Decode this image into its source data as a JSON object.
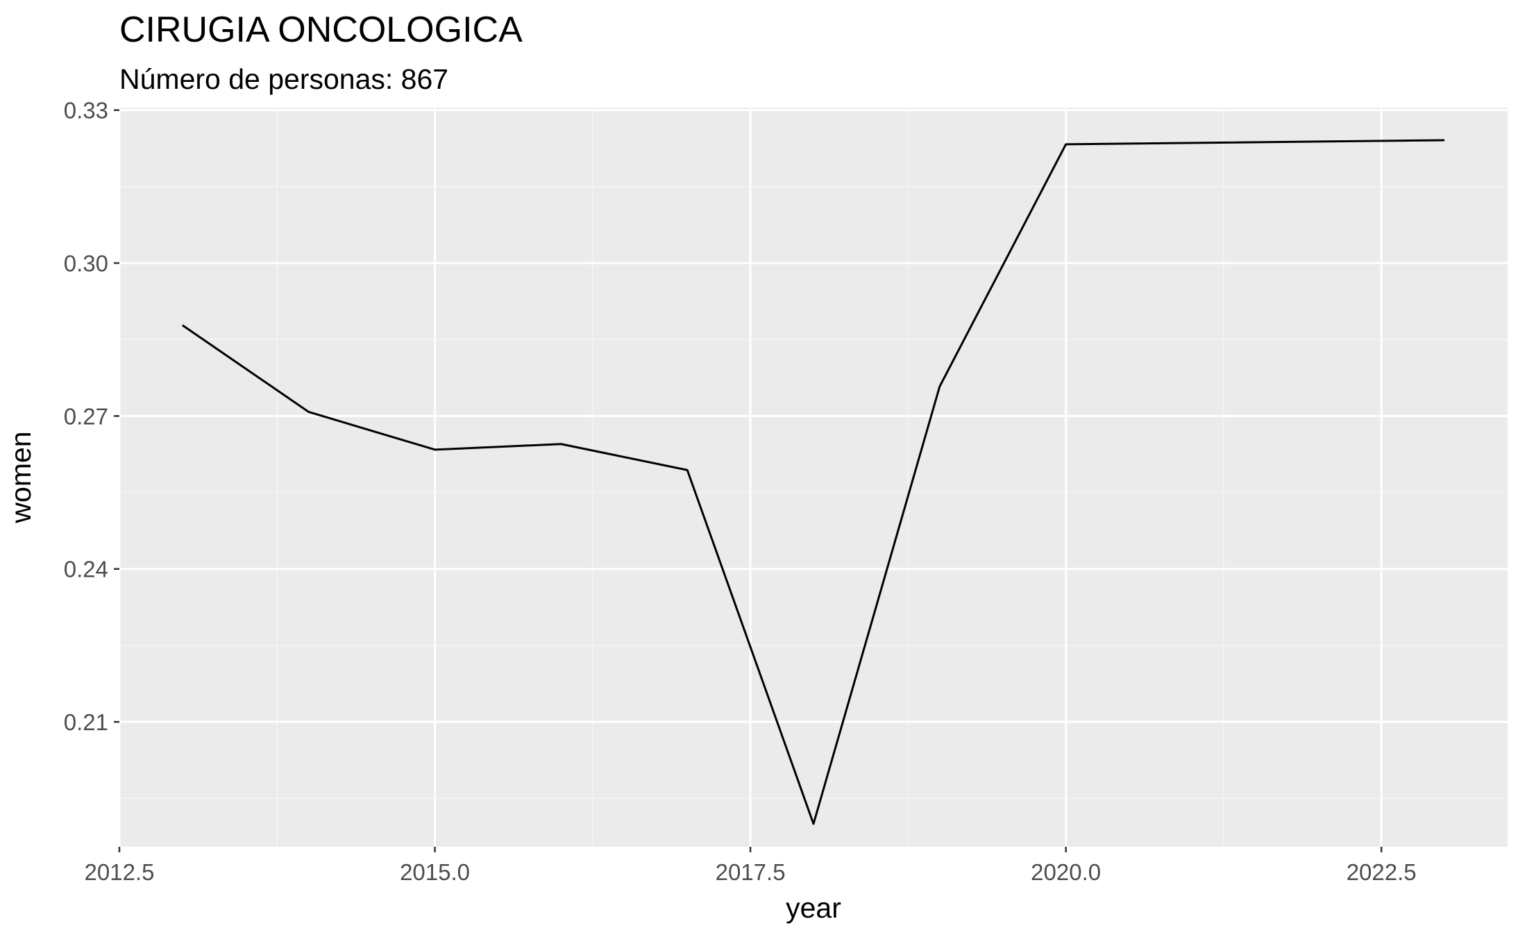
{
  "chart_data": {
    "type": "line",
    "title": "CIRUGIA ONCOLOGICA",
    "subtitle": "Número de personas: 867",
    "xlabel": "year",
    "ylabel": "women",
    "xlim": [
      2012.5,
      2023.5
    ],
    "ylim": [
      0.1855,
      0.3305
    ],
    "x_ticks": [
      2012.5,
      2015.0,
      2017.5,
      2020.0,
      2022.5
    ],
    "x_tick_labels": [
      "2012.5",
      "2015.0",
      "2017.5",
      "2020.0",
      "2022.5"
    ],
    "y_ticks": [
      0.21,
      0.24,
      0.27,
      0.3,
      0.33
    ],
    "y_tick_labels": [
      "0.21",
      "0.24",
      "0.27",
      "0.30",
      "0.33"
    ],
    "grid": true,
    "colors": {
      "panel_background": "#ebebeb",
      "grid_major": "#ffffff",
      "grid_minor": "#f5f5f5",
      "line": "#000000",
      "tick_label": "#4d4d4d",
      "tick_mark": "#333333"
    },
    "series": [
      {
        "x": [
          2013,
          2014,
          2015,
          2016,
          2017,
          2018,
          2019,
          2020,
          2023
        ],
        "y": [
          0.2878,
          0.2708,
          0.2634,
          0.2645,
          0.2594,
          0.19,
          0.2758,
          0.3233,
          0.3241
        ]
      }
    ]
  }
}
